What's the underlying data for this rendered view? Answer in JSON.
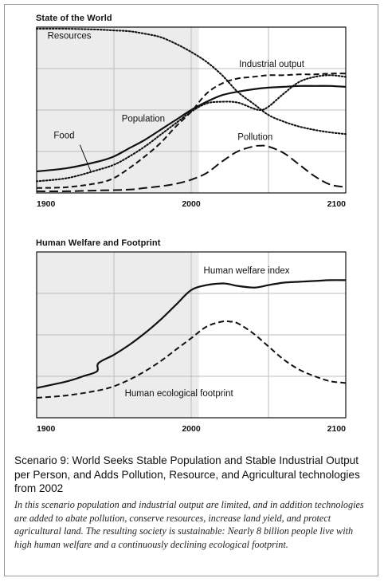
{
  "chart_data": [
    {
      "id": "state",
      "type": "line",
      "title": "State of the World",
      "xlim": [
        1900,
        2100
      ],
      "ylim": [
        0,
        1
      ],
      "xticks": [
        1900,
        2000,
        2100
      ],
      "yticks": [
        0.25,
        0.5,
        0.75
      ],
      "shade": [
        1900,
        2005
      ],
      "xlabel": "",
      "ylabel": "",
      "series": [
        {
          "name": "Resources",
          "style": "dotted",
          "x": [
            1900,
            1920,
            1940,
            1950,
            1960,
            1970,
            1980,
            1990,
            2000,
            2010,
            2020,
            2030,
            2040,
            2050,
            2060,
            2070,
            2080,
            2090,
            2100
          ],
          "y": [
            0.99,
            0.99,
            0.985,
            0.98,
            0.975,
            0.96,
            0.94,
            0.9,
            0.85,
            0.79,
            0.71,
            0.61,
            0.54,
            0.47,
            0.43,
            0.4,
            0.38,
            0.365,
            0.355
          ],
          "label": {
            "text": "Resources",
            "x": 1907,
            "y": 0.93
          }
        },
        {
          "name": "Industrial output",
          "style": "dashed",
          "x": [
            1900,
            1920,
            1940,
            1950,
            1960,
            1970,
            1980,
            1990,
            2000,
            2010,
            2020,
            2030,
            2040,
            2050,
            2060,
            2070,
            2080,
            2090,
            2100
          ],
          "y": [
            0.03,
            0.035,
            0.06,
            0.09,
            0.15,
            0.22,
            0.3,
            0.4,
            0.49,
            0.6,
            0.66,
            0.69,
            0.7,
            0.71,
            0.71,
            0.715,
            0.715,
            0.72,
            0.72
          ],
          "label": {
            "text": "Industrial output",
            "x": 2031,
            "y": 0.76
          }
        },
        {
          "name": "Population",
          "style": "solid",
          "x": [
            1900,
            1920,
            1940,
            1950,
            1960,
            1970,
            1980,
            1990,
            2000,
            2010,
            2020,
            2030,
            2040,
            2050,
            2060,
            2070,
            2080,
            2090,
            2100
          ],
          "y": [
            0.13,
            0.15,
            0.19,
            0.22,
            0.27,
            0.32,
            0.38,
            0.44,
            0.5,
            0.55,
            0.59,
            0.61,
            0.625,
            0.635,
            0.64,
            0.645,
            0.645,
            0.645,
            0.64
          ],
          "label": {
            "text": "Population",
            "x": 1955,
            "y": 0.43
          }
        },
        {
          "name": "Food",
          "style": "dotted",
          "x": [
            1900,
            1920,
            1940,
            1950,
            1960,
            1970,
            1980,
            1990,
            2000,
            2010,
            2020,
            2030,
            2040,
            2045,
            2050,
            2060,
            2070,
            2080,
            2090,
            2100
          ],
          "y": [
            0.07,
            0.09,
            0.14,
            0.17,
            0.22,
            0.28,
            0.35,
            0.42,
            0.49,
            0.54,
            0.55,
            0.545,
            0.51,
            0.5,
            0.52,
            0.6,
            0.67,
            0.7,
            0.71,
            0.7
          ],
          "label": {
            "text": "Food",
            "x": 1911,
            "y": 0.33
          }
        },
        {
          "name": "Pollution",
          "style": "longdash",
          "x": [
            1900,
            1920,
            1940,
            1960,
            1970,
            1980,
            1990,
            2000,
            2010,
            2020,
            2030,
            2040,
            2045,
            2050,
            2060,
            2070,
            2080,
            2090,
            2100
          ],
          "y": [
            0.01,
            0.01,
            0.015,
            0.02,
            0.03,
            0.04,
            0.055,
            0.08,
            0.12,
            0.19,
            0.25,
            0.28,
            0.285,
            0.28,
            0.24,
            0.17,
            0.1,
            0.05,
            0.035
          ],
          "label": {
            "text": "Pollution",
            "x": 2030,
            "y": 0.32
          }
        }
      ]
    },
    {
      "id": "welfare",
      "type": "line",
      "title": "Human Welfare and Footprint",
      "xlim": [
        1900,
        2100
      ],
      "ylim": [
        0,
        1
      ],
      "xticks": [
        1900,
        2000,
        2100
      ],
      "yticks": [
        0.25,
        0.5,
        0.75
      ],
      "shade": [
        1900,
        2005
      ],
      "xlabel": "",
      "ylabel": "",
      "series": [
        {
          "name": "Human welfare index",
          "style": "solid",
          "x": [
            1900,
            1920,
            1930,
            1939,
            1940,
            1950,
            1960,
            1970,
            1980,
            1990,
            2000,
            2010,
            2020,
            2025,
            2030,
            2040,
            2045,
            2050,
            2060,
            2070,
            2080,
            2090,
            2100
          ],
          "y": [
            0.18,
            0.22,
            0.25,
            0.28,
            0.33,
            0.38,
            0.44,
            0.51,
            0.59,
            0.68,
            0.77,
            0.8,
            0.81,
            0.805,
            0.795,
            0.785,
            0.79,
            0.8,
            0.815,
            0.82,
            0.825,
            0.83,
            0.83
          ],
          "label": {
            "text": "Human welfare index",
            "x": 2008,
            "y": 0.87
          }
        },
        {
          "name": "Human ecological footprint",
          "style": "dashed",
          "x": [
            1900,
            1920,
            1940,
            1950,
            1960,
            1970,
            1980,
            1990,
            2000,
            2010,
            2020,
            2025,
            2030,
            2040,
            2050,
            2060,
            2070,
            2080,
            2090,
            2100
          ],
          "y": [
            0.12,
            0.135,
            0.165,
            0.19,
            0.23,
            0.28,
            0.34,
            0.41,
            0.48,
            0.55,
            0.58,
            0.58,
            0.57,
            0.51,
            0.43,
            0.35,
            0.29,
            0.25,
            0.22,
            0.21
          ],
          "label": {
            "text": "Human ecological footprint",
            "x": 1957,
            "y": 0.13
          }
        }
      ]
    }
  ],
  "caption": {
    "title": "Scenario 9: World Seeks Stable Population and Stable Industrial Output per Person, and Adds Pollution, Resource, and Agricultural technologies from 2002",
    "body": "In this scenario population and industrial output are limited, and in addition technologies are added to abate pollution, conserve resources, increase land yield, and protect agricultural land. The resulting society is sustainable: Nearly 8 billion people live with high human welfare and a continuously declining ecological footprint."
  }
}
